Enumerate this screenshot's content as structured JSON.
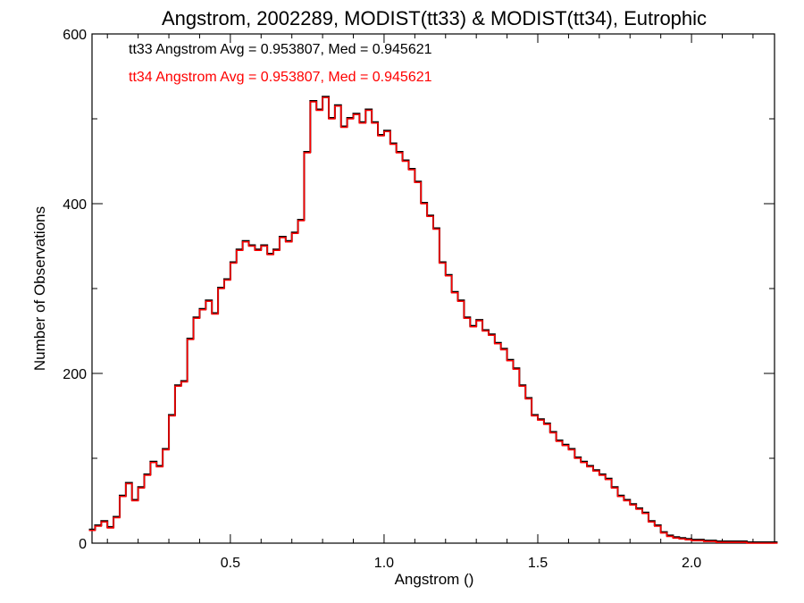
{
  "chart_data": {
    "type": "histogram",
    "title": "Angstrom, 2002289, MODIST(tt33) & MODIST(tt34), Eutrophic",
    "xlabel": "Angstrom ()",
    "ylabel": "Number of Observations",
    "xlim": [
      0.05,
      2.27
    ],
    "ylim": [
      0,
      600
    ],
    "x_ticks": [
      0.5,
      1.0,
      1.5,
      2.0
    ],
    "x_tick_labels": [
      "0.5",
      "1.0",
      "1.5",
      "2.0"
    ],
    "y_ticks": [
      0,
      200,
      400,
      600
    ],
    "y_tick_labels": [
      "0",
      "200",
      "400",
      "600"
    ],
    "annotations": [
      {
        "text": "tt33 Angstrom Avg = 0.953807, Med = 0.945621",
        "color": "#000000"
      },
      {
        "text": "tt34 Angstrom Avg = 0.953807, Med = 0.945621",
        "color": "#ff0000"
      }
    ],
    "series": [
      {
        "name": "tt33",
        "color": "#000000"
      },
      {
        "name": "tt34",
        "color": "#ff0000"
      }
    ],
    "bin_centers": [
      0.05,
      0.07,
      0.09,
      0.11,
      0.13,
      0.15,
      0.17,
      0.19,
      0.21,
      0.23,
      0.25,
      0.27,
      0.29,
      0.31,
      0.33,
      0.35,
      0.37,
      0.39,
      0.41,
      0.43,
      0.45,
      0.47,
      0.49,
      0.51,
      0.53,
      0.55,
      0.57,
      0.59,
      0.61,
      0.63,
      0.65,
      0.67,
      0.69,
      0.71,
      0.73,
      0.75,
      0.77,
      0.79,
      0.81,
      0.83,
      0.85,
      0.87,
      0.89,
      0.91,
      0.93,
      0.95,
      0.97,
      0.99,
      1.01,
      1.03,
      1.05,
      1.07,
      1.09,
      1.11,
      1.13,
      1.15,
      1.17,
      1.19,
      1.21,
      1.23,
      1.25,
      1.27,
      1.29,
      1.31,
      1.33,
      1.35,
      1.37,
      1.39,
      1.41,
      1.43,
      1.45,
      1.47,
      1.49,
      1.51,
      1.53,
      1.55,
      1.57,
      1.59,
      1.61,
      1.63,
      1.65,
      1.67,
      1.69,
      1.71,
      1.73,
      1.75,
      1.77,
      1.79,
      1.81,
      1.83,
      1.85,
      1.87,
      1.89,
      1.91,
      1.93,
      1.95,
      1.97,
      1.99,
      2.01,
      2.03,
      2.05,
      2.07,
      2.09,
      2.11,
      2.13,
      2.15,
      2.17,
      2.19,
      2.21,
      2.23,
      2.25,
      2.27
    ],
    "counts": [
      15,
      20,
      25,
      18,
      30,
      55,
      70,
      50,
      65,
      80,
      95,
      90,
      110,
      150,
      185,
      190,
      240,
      265,
      275,
      285,
      270,
      300,
      310,
      330,
      345,
      355,
      350,
      345,
      350,
      340,
      345,
      360,
      355,
      365,
      380,
      460,
      520,
      510,
      525,
      500,
      515,
      490,
      500,
      505,
      495,
      510,
      495,
      480,
      485,
      470,
      460,
      450,
      440,
      425,
      400,
      385,
      370,
      330,
      315,
      295,
      285,
      265,
      255,
      262,
      250,
      245,
      235,
      228,
      215,
      205,
      185,
      170,
      150,
      145,
      140,
      130,
      120,
      115,
      110,
      100,
      95,
      90,
      85,
      80,
      75,
      65,
      55,
      50,
      45,
      40,
      35,
      25,
      20,
      12,
      8,
      6,
      5,
      4,
      3,
      3,
      2,
      2,
      1,
      1,
      1,
      1,
      1,
      0,
      0,
      0,
      0,
      0
    ]
  }
}
